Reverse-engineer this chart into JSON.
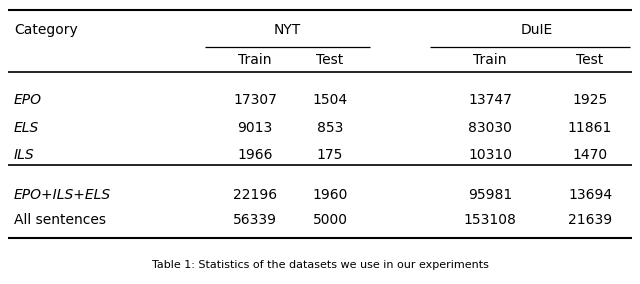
{
  "col_headers_l1_nyt": "NYT",
  "col_headers_l1_duie": "DuIE",
  "col_headers_l2": [
    "Category",
    "Train",
    "Test",
    "Train",
    "Test"
  ],
  "rows_group1": [
    [
      "EPO",
      "17307",
      "1504",
      "13747",
      "1925"
    ],
    [
      "ELS",
      "9013",
      "853",
      "83030",
      "11861"
    ],
    [
      "ILS",
      "1966",
      "175",
      "10310",
      "1470"
    ]
  ],
  "rows_group2": [
    [
      "EPO+ILS+ELS",
      "22196",
      "1960",
      "95981",
      "13694"
    ],
    [
      "All sentences",
      "56339",
      "5000",
      "153108",
      "21639"
    ]
  ],
  "italic_rows_group1": [
    true,
    true,
    true
  ],
  "italic_rows_group2": [
    true,
    false
  ],
  "background_color": "#ffffff",
  "text_color": "#000000",
  "font_size": 10,
  "caption": "Table 1: Statistics of the datasets we use in our experiments",
  "caption_fontsize": 8
}
